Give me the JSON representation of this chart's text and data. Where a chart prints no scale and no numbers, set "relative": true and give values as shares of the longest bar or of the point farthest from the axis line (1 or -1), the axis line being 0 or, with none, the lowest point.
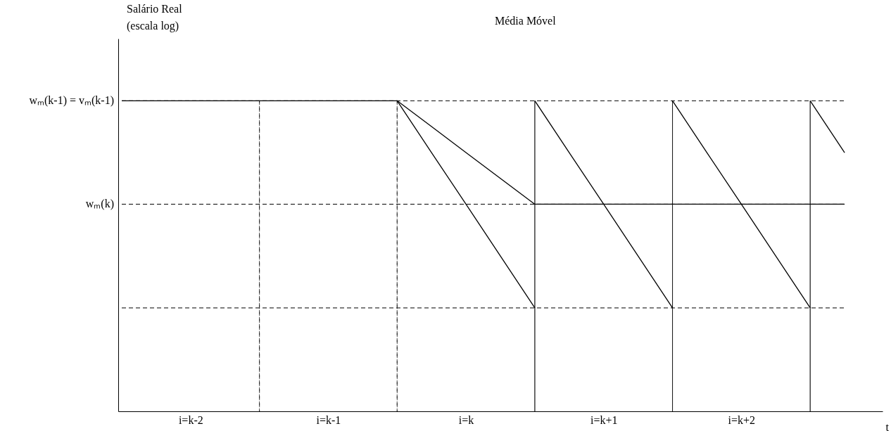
{
  "chart_data": {
    "type": "line",
    "relative": true,
    "xlabel": "t",
    "categories": [
      null,
      null,
      "i=k-2",
      null,
      null,
      null,
      "i=k-1",
      null,
      null,
      null,
      "i=k",
      null,
      null,
      null,
      "i=k+1",
      null,
      null,
      null,
      "i=k+2",
      null,
      null,
      null
    ],
    "series": [
      {
        "color": "#000000",
        "values": [
          1,
          1,
          1,
          1,
          1,
          1,
          1,
          1,
          1,
          0.833,
          0.667,
          0.5,
          0.333,
          null,
          null,
          null,
          null,
          null,
          null,
          null,
          null,
          null
        ]
      },
      {
        "color": "#000000",
        "values": [
          null,
          null,
          null,
          null,
          null,
          null,
          null,
          null,
          1,
          0.917,
          0.833,
          0.75,
          0.667,
          0.667,
          0.667,
          0.667,
          0.667,
          0.667,
          0.667,
          0.667,
          0.667,
          0.667
        ]
      },
      {
        "color": "#000000",
        "values": [
          null,
          null,
          null,
          null,
          null,
          null,
          null,
          null,
          null,
          null,
          null,
          null,
          1,
          0.833,
          0.667,
          0.5,
          0.333,
          null,
          null,
          null,
          null,
          null
        ]
      },
      {
        "color": "#000000",
        "values": [
          null,
          null,
          null,
          null,
          null,
          null,
          null,
          null,
          null,
          null,
          null,
          null,
          null,
          null,
          null,
          null,
          1,
          0.833,
          0.667,
          0.5,
          0.333,
          null
        ]
      },
      {
        "color": "#000000",
        "values": [
          null,
          null,
          null,
          null,
          null,
          null,
          null,
          null,
          null,
          null,
          null,
          null,
          null,
          null,
          null,
          null,
          null,
          null,
          null,
          null,
          1,
          0.833
        ]
      },
      {
        "type": "bar",
        "color": "#000000",
        "line_style": "dashed",
        "values": [
          null,
          null,
          null,
          null,
          1,
          null,
          null,
          null,
          1,
          null,
          null,
          null,
          null,
          null,
          null,
          null,
          null,
          null,
          null,
          null,
          null,
          null
        ]
      },
      {
        "type": "bar",
        "color": "#000000",
        "line_style": "solid",
        "values": [
          null,
          null,
          null,
          null,
          null,
          null,
          null,
          null,
          null,
          null,
          null,
          null,
          1,
          null,
          null,
          null,
          1,
          null,
          null,
          null,
          1,
          null
        ]
      }
    ],
    "ref_lines": [
      {
        "axis": "y",
        "value": 1,
        "label": "wₘ(k-1) = vₘ(k-1)",
        "color": "#000000",
        "line_style": "dashed"
      },
      {
        "axis": "y",
        "value": 0.667,
        "label": "wₘ(k)",
        "color": "#000000",
        "line_style": "dashed"
      },
      {
        "axis": "y",
        "value": 0.333,
        "label": null,
        "color": "#000000",
        "line_style": "dashed"
      }
    ],
    "annotations": [
      "Salário Real\n(escala log)",
      "Média Móvel"
    ]
  }
}
